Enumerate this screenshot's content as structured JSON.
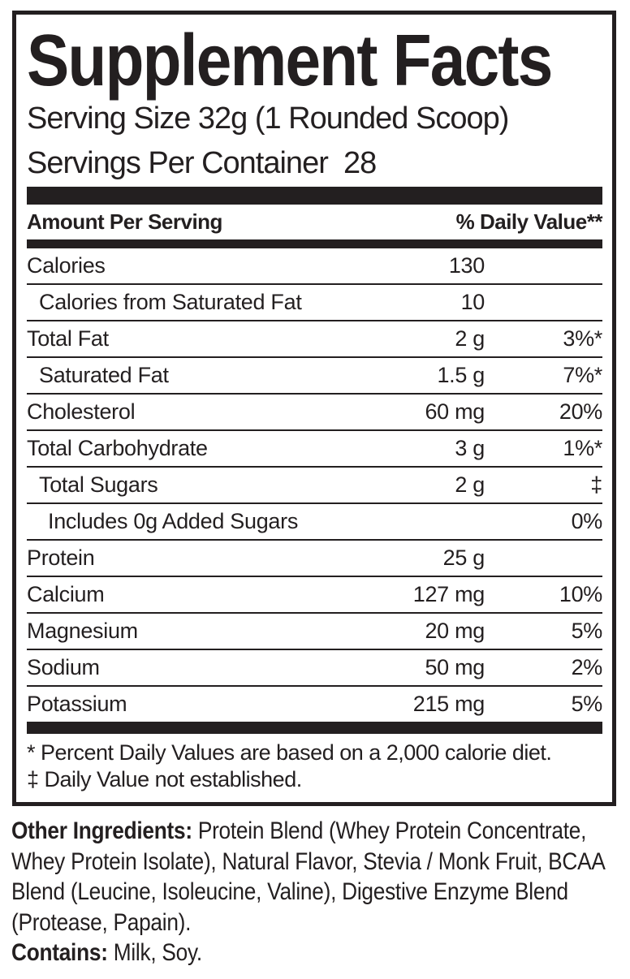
{
  "label": {
    "ink_color": "#231f20",
    "title": "Supplement Facts",
    "serving_size": "Serving Size 32g (1 Rounded Scoop)",
    "servings_per_container": "Servings Per Container  28",
    "columns": {
      "amount_per_serving": "Amount Per Serving",
      "daily_value": "% Daily Value**"
    },
    "rows": [
      {
        "name": "Calories",
        "amount": "130",
        "dv": "",
        "indent": 0
      },
      {
        "name": "Calories from Saturated Fat",
        "amount": "10",
        "dv": "",
        "indent": 1
      },
      {
        "name": "Total Fat",
        "amount": "2 g",
        "dv": "3%*",
        "indent": 0
      },
      {
        "name": "Saturated Fat",
        "amount": "1.5 g",
        "dv": "7%*",
        "indent": 1
      },
      {
        "name": "Cholesterol",
        "amount": "60 mg",
        "dv": "20%",
        "indent": 0
      },
      {
        "name": "Total Carbohydrate",
        "amount": "3 g",
        "dv": "1%*",
        "indent": 0
      },
      {
        "name": "Total Sugars",
        "amount": "2 g",
        "dv": "‡",
        "indent": 1
      },
      {
        "name": "Includes 0g Added Sugars",
        "amount": "",
        "dv": "0%",
        "indent": 2
      },
      {
        "name": "Protein",
        "amount": "25 g",
        "dv": "",
        "indent": 0
      },
      {
        "name": "Calcium",
        "amount": "127 mg",
        "dv": "10%",
        "indent": 0
      },
      {
        "name": "Magnesium",
        "amount": "20 mg",
        "dv": "5%",
        "indent": 0
      },
      {
        "name": "Sodium",
        "amount": "50 mg",
        "dv": "2%",
        "indent": 0
      },
      {
        "name": "Potassium",
        "amount": "215 mg",
        "dv": "5%",
        "indent": 0
      }
    ],
    "footnotes": [
      "* Percent Daily Values are based on a 2,000 calorie diet.",
      "‡ Daily Value not established."
    ],
    "other_ingredients": {
      "label": "Other Ingredients:",
      "text": " Protein Blend (Whey Protein Concentrate, Whey Protein Isolate), Natural Flavor, Stevia / Monk Fruit, BCAA Blend (Leucine, Isoleucine, Valine), Digestive Enzyme Blend (Protease, Papain)."
    },
    "contains": {
      "label": "Contains:",
      "text": " Milk, Soy."
    }
  }
}
